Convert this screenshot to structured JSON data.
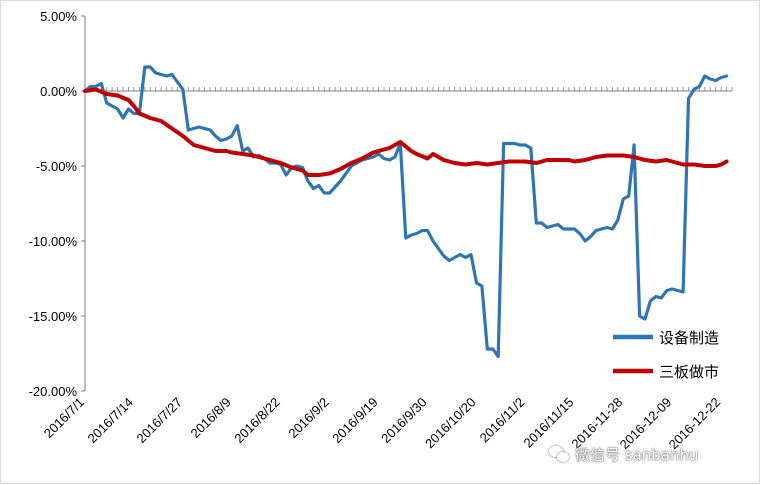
{
  "chart_data": {
    "type": "line",
    "title": "",
    "xlabel": "",
    "ylabel": "",
    "ylim": [
      -0.2,
      0.05
    ],
    "yticks": [
      "5.00%",
      "0.00%",
      "-5.00%",
      "-10.00%",
      "-15.00%",
      "-20.00%"
    ],
    "ytick_values": [
      0.05,
      0,
      -0.05,
      -0.1,
      -0.15,
      -0.2
    ],
    "xticks": [
      "2016/7/1",
      "2016/7/14",
      "2016/7/27",
      "2016/8/9",
      "2016/8/22",
      "2016/9/2",
      "2016/9/19",
      "2016/9/30",
      "2016/10/20",
      "2016/11/2",
      "2016/11/15",
      "2016-11-28",
      "2016-12-09",
      "2016-12-22"
    ],
    "xtick_positions": [
      0,
      9,
      18,
      27,
      36,
      45,
      54,
      63,
      72,
      81,
      90,
      99,
      108,
      117
    ],
    "n_points": 120,
    "grid": false,
    "legend_position": "bottom-right",
    "series": [
      {
        "name": "设备制造",
        "color": "#2e75b6",
        "values": [
          [
            0,
            0.0
          ],
          [
            1,
            0.003
          ],
          [
            2,
            0.003
          ],
          [
            3,
            0.005
          ],
          [
            4,
            -0.008
          ],
          [
            5,
            -0.01
          ],
          [
            6,
            -0.012
          ],
          [
            7,
            -0.018
          ],
          [
            8,
            -0.012
          ],
          [
            9,
            -0.015
          ],
          [
            10,
            -0.015
          ],
          [
            11,
            0.016
          ],
          [
            12,
            0.016
          ],
          [
            13,
            0.012
          ],
          [
            14,
            0.011
          ],
          [
            15,
            0.01
          ],
          [
            16,
            0.011
          ],
          [
            17,
            0.006
          ],
          [
            18,
            0.001
          ],
          [
            19,
            -0.026
          ],
          [
            20,
            -0.025
          ],
          [
            21,
            -0.024
          ],
          [
            22,
            -0.025
          ],
          [
            23,
            -0.026
          ],
          [
            24,
            -0.03
          ],
          [
            25,
            -0.033
          ],
          [
            26,
            -0.032
          ],
          [
            27,
            -0.03
          ],
          [
            28,
            -0.023
          ],
          [
            29,
            -0.04
          ],
          [
            30,
            -0.038
          ],
          [
            31,
            -0.044
          ],
          [
            32,
            -0.043
          ],
          [
            33,
            -0.045
          ],
          [
            34,
            -0.048
          ],
          [
            35,
            -0.048
          ],
          [
            36,
            -0.049
          ],
          [
            37,
            -0.056
          ],
          [
            38,
            -0.051
          ],
          [
            39,
            -0.05
          ],
          [
            40,
            -0.051
          ],
          [
            41,
            -0.06
          ],
          [
            42,
            -0.065
          ],
          [
            43,
            -0.063
          ],
          [
            44,
            -0.068
          ],
          [
            45,
            -0.068
          ],
          [
            46,
            -0.064
          ],
          [
            47,
            -0.06
          ],
          [
            48,
            -0.055
          ],
          [
            49,
            -0.05
          ],
          [
            50,
            -0.048
          ],
          [
            51,
            -0.046
          ],
          [
            52,
            -0.045
          ],
          [
            53,
            -0.044
          ],
          [
            54,
            -0.042
          ],
          [
            55,
            -0.045
          ],
          [
            56,
            -0.046
          ],
          [
            57,
            -0.044
          ],
          [
            58,
            -0.035
          ],
          [
            59,
            -0.098
          ],
          [
            60,
            -0.096
          ],
          [
            61,
            -0.095
          ],
          [
            62,
            -0.093
          ],
          [
            63,
            -0.093
          ],
          [
            64,
            -0.1
          ],
          [
            65,
            -0.105
          ],
          [
            66,
            -0.11
          ],
          [
            67,
            -0.113
          ],
          [
            68,
            -0.111
          ],
          [
            69,
            -0.109
          ],
          [
            70,
            -0.111
          ],
          [
            71,
            -0.109
          ],
          [
            72,
            -0.128
          ],
          [
            73,
            -0.13
          ],
          [
            74,
            -0.172
          ],
          [
            75,
            -0.172
          ],
          [
            76,
            -0.177
          ],
          [
            77,
            -0.035
          ],
          [
            78,
            -0.035
          ],
          [
            79,
            -0.035
          ],
          [
            80,
            -0.036
          ],
          [
            81,
            -0.036
          ],
          [
            82,
            -0.038
          ],
          [
            83,
            -0.088
          ],
          [
            84,
            -0.088
          ],
          [
            85,
            -0.091
          ],
          [
            86,
            -0.09
          ],
          [
            87,
            -0.089
          ],
          [
            88,
            -0.092
          ],
          [
            89,
            -0.092
          ],
          [
            90,
            -0.092
          ],
          [
            91,
            -0.095
          ],
          [
            92,
            -0.1
          ],
          [
            93,
            -0.097
          ],
          [
            94,
            -0.093
          ],
          [
            95,
            -0.092
          ],
          [
            96,
            -0.091
          ],
          [
            97,
            -0.092
          ],
          [
            98,
            -0.086
          ],
          [
            99,
            -0.072
          ],
          [
            100,
            -0.07
          ],
          [
            101,
            -0.036
          ],
          [
            102,
            -0.15
          ],
          [
            103,
            -0.152
          ],
          [
            104,
            -0.14
          ],
          [
            105,
            -0.137
          ],
          [
            106,
            -0.138
          ],
          [
            107,
            -0.133
          ],
          [
            108,
            -0.132
          ],
          [
            109,
            -0.133
          ],
          [
            110,
            -0.134
          ],
          [
            111,
            -0.005
          ],
          [
            112,
            0.001
          ],
          [
            113,
            0.003
          ],
          [
            114,
            0.01
          ],
          [
            115,
            0.008
          ],
          [
            116,
            0.007
          ],
          [
            117,
            0.009
          ],
          [
            118,
            0.01
          ]
        ]
      },
      {
        "name": "三板做市",
        "color": "#c00000",
        "values": [
          [
            0,
            0.0
          ],
          [
            2,
            0.001
          ],
          [
            4,
            -0.002
          ],
          [
            6,
            -0.003
          ],
          [
            8,
            -0.006
          ],
          [
            9,
            -0.01
          ],
          [
            10,
            -0.015
          ],
          [
            12,
            -0.018
          ],
          [
            14,
            -0.02
          ],
          [
            16,
            -0.025
          ],
          [
            18,
            -0.03
          ],
          [
            20,
            -0.036
          ],
          [
            22,
            -0.038
          ],
          [
            24,
            -0.04
          ],
          [
            26,
            -0.04
          ],
          [
            27,
            -0.041
          ],
          [
            29,
            -0.042
          ],
          [
            31,
            -0.043
          ],
          [
            33,
            -0.045
          ],
          [
            35,
            -0.047
          ],
          [
            36,
            -0.048
          ],
          [
            38,
            -0.051
          ],
          [
            40,
            -0.053
          ],
          [
            41,
            -0.056
          ],
          [
            43,
            -0.056
          ],
          [
            45,
            -0.055
          ],
          [
            47,
            -0.052
          ],
          [
            49,
            -0.048
          ],
          [
            51,
            -0.045
          ],
          [
            53,
            -0.041
          ],
          [
            54,
            -0.04
          ],
          [
            56,
            -0.038
          ],
          [
            58,
            -0.034
          ],
          [
            60,
            -0.04
          ],
          [
            61,
            -0.042
          ],
          [
            63,
            -0.045
          ],
          [
            64,
            -0.042
          ],
          [
            66,
            -0.046
          ],
          [
            68,
            -0.048
          ],
          [
            70,
            -0.049
          ],
          [
            72,
            -0.048
          ],
          [
            74,
            -0.049
          ],
          [
            76,
            -0.048
          ],
          [
            78,
            -0.047
          ],
          [
            80,
            -0.047
          ],
          [
            81,
            -0.047
          ],
          [
            83,
            -0.048
          ],
          [
            85,
            -0.046
          ],
          [
            87,
            -0.046
          ],
          [
            89,
            -0.046
          ],
          [
            90,
            -0.047
          ],
          [
            92,
            -0.046
          ],
          [
            94,
            -0.044
          ],
          [
            96,
            -0.043
          ],
          [
            98,
            -0.043
          ],
          [
            99,
            -0.043
          ],
          [
            101,
            -0.044
          ],
          [
            103,
            -0.046
          ],
          [
            105,
            -0.047
          ],
          [
            107,
            -0.046
          ],
          [
            108,
            -0.047
          ],
          [
            110,
            -0.049
          ],
          [
            112,
            -0.049
          ],
          [
            114,
            -0.05
          ],
          [
            116,
            -0.05
          ],
          [
            117,
            -0.049
          ],
          [
            118,
            -0.047
          ]
        ]
      }
    ]
  },
  "watermark": {
    "icon": "wechat-icon",
    "text": "微信号 sanbanhu"
  }
}
